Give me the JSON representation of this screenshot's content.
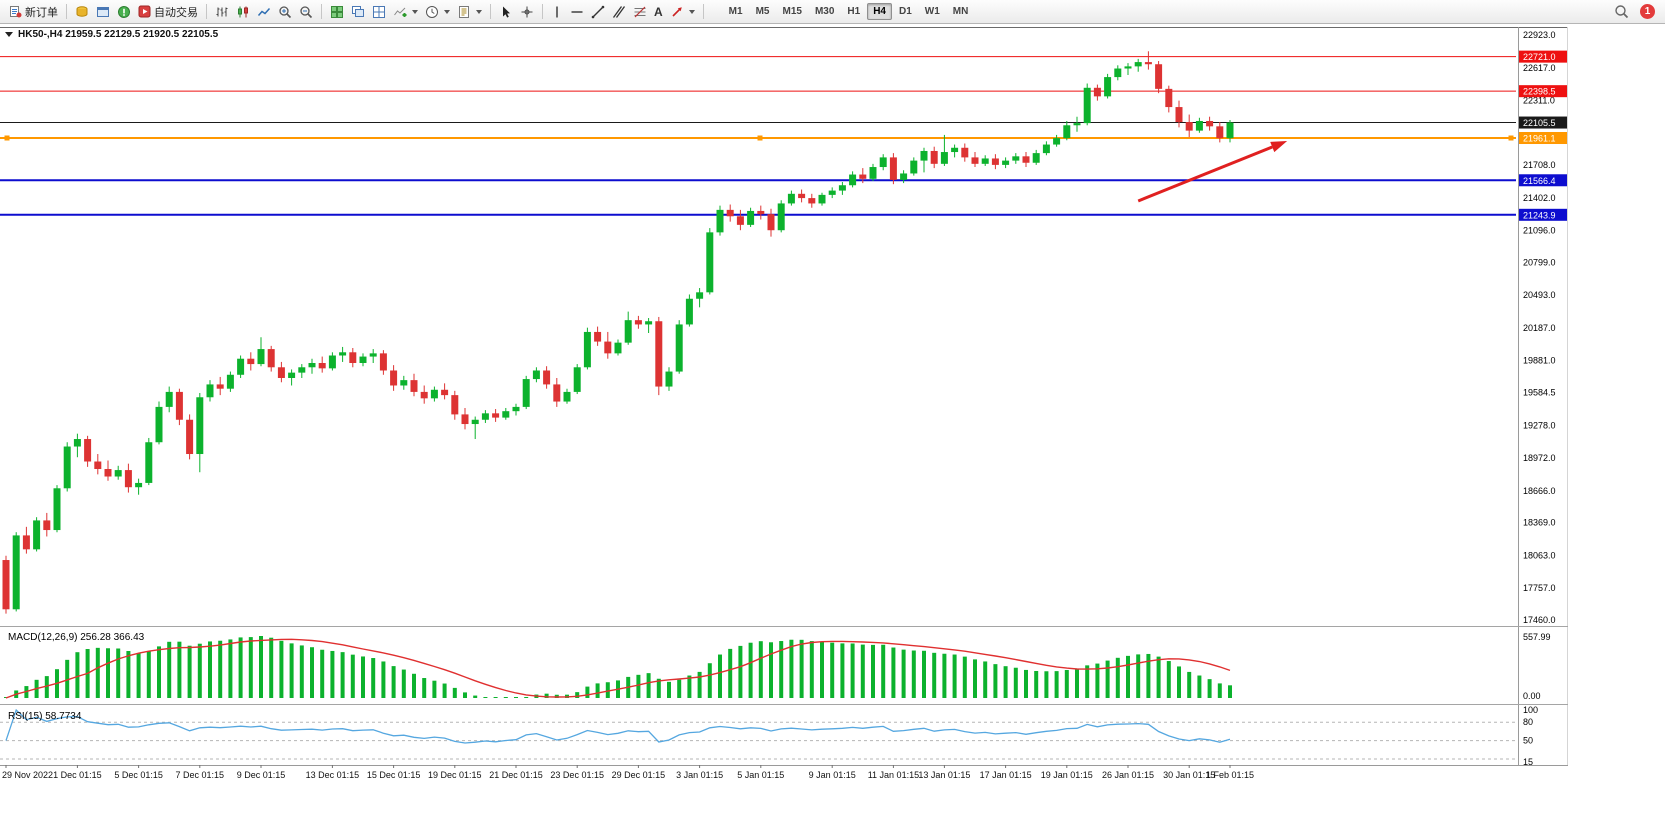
{
  "toolbar": {
    "new_order": "新订单",
    "auto_trading": "自动交易",
    "text_tool_glyph": "A",
    "timeframes": [
      "M1",
      "M5",
      "M15",
      "M30",
      "H1",
      "H4",
      "D1",
      "W1",
      "MN"
    ],
    "active_timeframe": "H4",
    "badge": "1"
  },
  "chart_data": {
    "type": "candlestick",
    "symbol": "HK50-",
    "timeframe": "H4",
    "header_text": "HK50-,H4 21959.5 22129.5 21920.5 22105.5",
    "current_ohlc": {
      "open": 21959.5,
      "high": 22129.5,
      "low": 21920.5,
      "close": 22105.5
    },
    "price_axis": {
      "max": 22923.0,
      "min": 17460.0,
      "labels": [
        "22923.0",
        "22617.0",
        "22311.0",
        "21708.0",
        "21402.0",
        "21096.0",
        "20799.0",
        "20493.0",
        "20187.0",
        "19881.0",
        "19584.5",
        "19278.0",
        "18972.0",
        "18666.0",
        "18369.0",
        "18063.0",
        "17757.0",
        "17460.0"
      ]
    },
    "hlines": [
      {
        "price": 22721.0,
        "label": "22721.0",
        "color": "#ee1111",
        "width": 1
      },
      {
        "price": 22398.5,
        "label": "22398.5",
        "color": "#ee1111",
        "width": 1
      },
      {
        "price": 22105.5,
        "label": "22105.5",
        "color": "#1a1a1a",
        "width": 1
      },
      {
        "price": 21961.1,
        "label": "21961.1",
        "color": "#ff9800",
        "width": 2,
        "selected": true
      },
      {
        "price": 21566.4,
        "label": "21566.4",
        "color": "#0d0dcf",
        "width": 2
      },
      {
        "price": 21243.9,
        "label": "21243.9",
        "color": "#0d0dcf",
        "width": 2
      }
    ],
    "candles": [
      [
        18020,
        18060,
        17520,
        17560
      ],
      [
        17560,
        18280,
        17540,
        18250
      ],
      [
        18250,
        18330,
        18080,
        18120
      ],
      [
        18120,
        18420,
        18100,
        18390
      ],
      [
        18390,
        18460,
        18240,
        18300
      ],
      [
        18300,
        18720,
        18280,
        18690
      ],
      [
        18690,
        19120,
        18660,
        19080
      ],
      [
        19080,
        19200,
        18980,
        19150
      ],
      [
        19150,
        19180,
        18890,
        18940
      ],
      [
        18940,
        19010,
        18820,
        18870
      ],
      [
        18870,
        18950,
        18760,
        18800
      ],
      [
        18800,
        18900,
        18770,
        18860
      ],
      [
        18860,
        18920,
        18650,
        18700
      ],
      [
        18700,
        18780,
        18630,
        18740
      ],
      [
        18740,
        19160,
        18720,
        19120
      ],
      [
        19120,
        19500,
        19100,
        19450
      ],
      [
        19450,
        19640,
        19400,
        19590
      ],
      [
        19590,
        19620,
        19280,
        19330
      ],
      [
        19330,
        19380,
        18960,
        19010
      ],
      [
        19010,
        19580,
        18840,
        19540
      ],
      [
        19540,
        19700,
        19500,
        19660
      ],
      [
        19660,
        19730,
        19560,
        19620
      ],
      [
        19620,
        19780,
        19590,
        19750
      ],
      [
        19750,
        19930,
        19720,
        19900
      ],
      [
        19900,
        19960,
        19790,
        19850
      ],
      [
        19850,
        20100,
        19830,
        19990
      ],
      [
        19990,
        20020,
        19780,
        19820
      ],
      [
        19820,
        19870,
        19680,
        19720
      ],
      [
        19720,
        19800,
        19650,
        19770
      ],
      [
        19770,
        19850,
        19720,
        19820
      ],
      [
        19820,
        19900,
        19760,
        19860
      ],
      [
        19860,
        19920,
        19770,
        19810
      ],
      [
        19810,
        19960,
        19790,
        19930
      ],
      [
        19930,
        20010,
        19870,
        19960
      ],
      [
        19960,
        20000,
        19820,
        19860
      ],
      [
        19860,
        19950,
        19830,
        19920
      ],
      [
        19920,
        19990,
        19860,
        19950
      ],
      [
        19950,
        19980,
        19750,
        19790
      ],
      [
        19790,
        19840,
        19600,
        19650
      ],
      [
        19650,
        19740,
        19610,
        19700
      ],
      [
        19700,
        19760,
        19550,
        19590
      ],
      [
        19590,
        19650,
        19480,
        19530
      ],
      [
        19530,
        19640,
        19500,
        19610
      ],
      [
        19610,
        19670,
        19520,
        19560
      ],
      [
        19560,
        19600,
        19330,
        19380
      ],
      [
        19380,
        19440,
        19240,
        19290
      ],
      [
        19290,
        19360,
        19150,
        19330
      ],
      [
        19330,
        19420,
        19300,
        19390
      ],
      [
        19390,
        19430,
        19310,
        19350
      ],
      [
        19350,
        19440,
        19330,
        19410
      ],
      [
        19410,
        19480,
        19370,
        19450
      ],
      [
        19450,
        19740,
        19430,
        19710
      ],
      [
        19710,
        19820,
        19680,
        19790
      ],
      [
        19790,
        19830,
        19620,
        19660
      ],
      [
        19660,
        19720,
        19450,
        19500
      ],
      [
        19500,
        19620,
        19480,
        19590
      ],
      [
        19590,
        19850,
        19570,
        19820
      ],
      [
        19820,
        20190,
        19800,
        20150
      ],
      [
        20150,
        20200,
        20020,
        20060
      ],
      [
        20060,
        20150,
        19900,
        19950
      ],
      [
        19950,
        20080,
        19930,
        20050
      ],
      [
        20050,
        20340,
        20030,
        20260
      ],
      [
        20260,
        20300,
        20180,
        20220
      ],
      [
        20220,
        20280,
        20140,
        20250
      ],
      [
        20250,
        20290,
        19560,
        19640
      ],
      [
        19640,
        19820,
        19600,
        19780
      ],
      [
        19780,
        20260,
        19760,
        20220
      ],
      [
        20220,
        20500,
        20200,
        20460
      ],
      [
        20460,
        20560,
        20380,
        20520
      ],
      [
        20520,
        21120,
        20500,
        21080
      ],
      [
        21080,
        21330,
        21050,
        21290
      ],
      [
        21290,
        21340,
        21180,
        21230
      ],
      [
        21230,
        21290,
        21100,
        21150
      ],
      [
        21150,
        21310,
        21130,
        21280
      ],
      [
        21280,
        21330,
        21200,
        21250
      ],
      [
        21250,
        21300,
        21040,
        21100
      ],
      [
        21100,
        21380,
        21080,
        21350
      ],
      [
        21350,
        21470,
        21330,
        21440
      ],
      [
        21440,
        21480,
        21360,
        21400
      ],
      [
        21400,
        21440,
        21310,
        21350
      ],
      [
        21350,
        21450,
        21330,
        21430
      ],
      [
        21430,
        21500,
        21400,
        21470
      ],
      [
        21470,
        21550,
        21430,
        21520
      ],
      [
        21520,
        21650,
        21500,
        21620
      ],
      [
        21620,
        21680,
        21540,
        21580
      ],
      [
        21580,
        21720,
        21560,
        21690
      ],
      [
        21690,
        21810,
        21660,
        21780
      ],
      [
        21780,
        21820,
        21530,
        21570
      ],
      [
        21570,
        21660,
        21540,
        21630
      ],
      [
        21630,
        21780,
        21610,
        21750
      ],
      [
        21750,
        21870,
        21640,
        21840
      ],
      [
        21840,
        21880,
        21680,
        21720
      ],
      [
        21720,
        21990,
        21700,
        21830
      ],
      [
        21830,
        21900,
        21780,
        21870
      ],
      [
        21870,
        21910,
        21740,
        21780
      ],
      [
        21780,
        21830,
        21690,
        21720
      ],
      [
        21720,
        21800,
        21700,
        21770
      ],
      [
        21770,
        21810,
        21670,
        21710
      ],
      [
        21710,
        21780,
        21680,
        21750
      ],
      [
        21750,
        21820,
        21720,
        21790
      ],
      [
        21790,
        21830,
        21690,
        21730
      ],
      [
        21730,
        21850,
        21710,
        21820
      ],
      [
        21820,
        21930,
        21800,
        21900
      ],
      [
        21900,
        21990,
        21880,
        21960
      ],
      [
        21960,
        22120,
        21940,
        22080
      ],
      [
        22080,
        22160,
        22020,
        22100
      ],
      [
        22100,
        22470,
        22080,
        22430
      ],
      [
        22430,
        22460,
        22310,
        22350
      ],
      [
        22350,
        22560,
        22330,
        22530
      ],
      [
        22530,
        22640,
        22500,
        22610
      ],
      [
        22610,
        22660,
        22550,
        22630
      ],
      [
        22630,
        22700,
        22580,
        22670
      ],
      [
        22670,
        22771,
        22600,
        22650
      ],
      [
        22650,
        22680,
        22380,
        22420
      ],
      [
        22420,
        22450,
        22200,
        22250
      ],
      [
        22250,
        22310,
        22060,
        22110
      ],
      [
        22110,
        22180,
        21970,
        22030
      ],
      [
        22030,
        22150,
        22010,
        22120
      ],
      [
        22120,
        22160,
        22030,
        22070
      ],
      [
        22070,
        22110,
        21920,
        21960
      ],
      [
        21959.5,
        22129.5,
        21920.5,
        22105.5
      ]
    ],
    "x_labels": [
      {
        "text": "29 Nov 2022",
        "i": 0
      },
      {
        "text": "1 Dec 01:15",
        "i": 7
      },
      {
        "text": "5 Dec 01:15",
        "i": 13
      },
      {
        "text": "7 Dec 01:15",
        "i": 19
      },
      {
        "text": "9 Dec 01:15",
        "i": 25
      },
      {
        "text": "13 Dec 01:15",
        "i": 32
      },
      {
        "text": "15 Dec 01:15",
        "i": 38
      },
      {
        "text": "19 Dec 01:15",
        "i": 44
      },
      {
        "text": "21 Dec 01:15",
        "i": 50
      },
      {
        "text": "23 Dec 01:15",
        "i": 56
      },
      {
        "text": "29 Dec 01:15",
        "i": 62
      },
      {
        "text": "3 Jan 01:15",
        "i": 68
      },
      {
        "text": "5 Jan 01:15",
        "i": 74
      },
      {
        "text": "9 Jan 01:15",
        "i": 81
      },
      {
        "text": "11 Jan 01:15",
        "i": 87
      },
      {
        "text": "13 Jan 01:15",
        "i": 92
      },
      {
        "text": "17 Jan 01:15",
        "i": 98
      },
      {
        "text": "19 Jan 01:15",
        "i": 104
      },
      {
        "text": "26 Jan 01:15",
        "i": 110
      },
      {
        "text": "30 Jan 01:15",
        "i": 116
      },
      {
        "text": "1 Feb 01:15",
        "i": 120
      }
    ],
    "macd": {
      "label_text": "MACD(12,26,9) 256.28 366.43",
      "fast": 12,
      "slow": 26,
      "signal": 9,
      "current_main": 256.28,
      "current_signal": 366.43,
      "scale_top": "557.99",
      "scale_zero": "0.00"
    },
    "rsi": {
      "label_text": "RSI(15) 58.7734",
      "period": 15,
      "current_value": 58.7734,
      "scale_min": 15,
      "scale_max": 100,
      "levels": [
        80,
        50,
        20
      ],
      "scale_labels": [
        {
          "v": 100,
          "text": "100"
        },
        {
          "v": 80,
          "text": "80"
        },
        {
          "v": 50,
          "text": "50"
        },
        {
          "v": 15,
          "text": "15"
        }
      ]
    },
    "trend_arrow": {
      "from_i": 111,
      "from_price": 21373,
      "to_i": 125.6,
      "to_price": 21933,
      "color": "#e02020"
    },
    "colors": {
      "up": "#0cb22d",
      "down": "#dd3333",
      "macd_hist": "#0cb22d",
      "macd_signal": "#e03030",
      "rsi_line": "#55a7e0"
    }
  }
}
